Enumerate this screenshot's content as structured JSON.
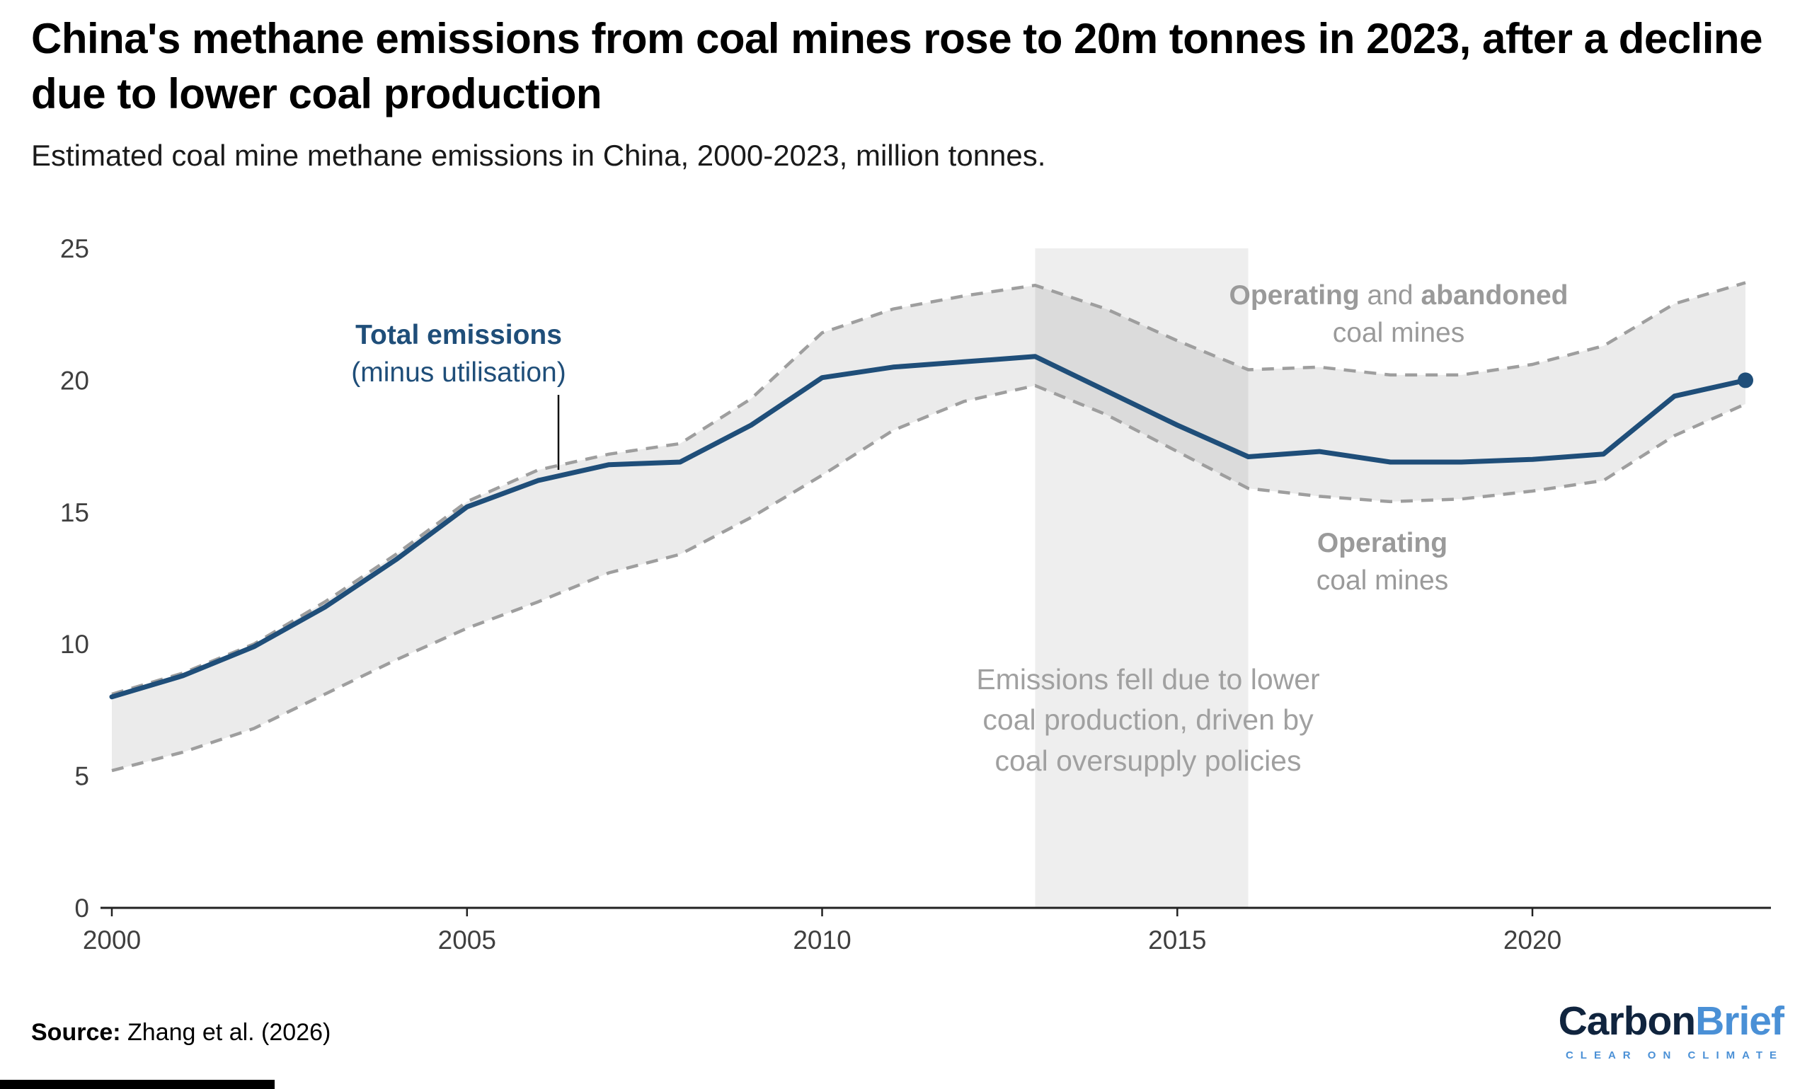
{
  "header": {
    "title": "China's methane emissions from coal mines rose to 20m tonnes in 2023, after a decline due to lower coal production",
    "subtitle": "Estimated coal mine methane emissions in China, 2000-2023, million tonnes."
  },
  "annotations": {
    "total_line1": "Total emissions",
    "total_line2": "(minus utilisation)",
    "upper_word1": "Operating",
    "upper_word2": " and ",
    "upper_word3": "abandoned",
    "upper_line2": "coal mines",
    "lower_word1": "Operating",
    "lower_line2": "coal mines",
    "highlight_line1": "Emissions fell due to lower",
    "highlight_line2": "coal production, driven by",
    "highlight_line3": "coal oversupply policies"
  },
  "footer": {
    "source_label": "Source:",
    "source_text": " Zhang et al. (2026)",
    "logo_part1": "Carbon",
    "logo_part2": "Brief",
    "logo_tagline": "CLEAR ON CLIMATE"
  },
  "colors": {
    "line_blue": "#1f4e79",
    "dashed_gray": "#9e9e9e",
    "band_fill": "rgba(0,0,0,0.08)",
    "highlight_fill": "#eeeeee",
    "axis": "#222222"
  },
  "chart_data": {
    "type": "line",
    "title": "China's methane emissions from coal mines rose to 20m tonnes in 2023, after a decline due to lower coal production",
    "subtitle": "Estimated coal mine methane emissions in China, 2000-2023, million tonnes.",
    "xlabel": "",
    "ylabel": "million tonnes",
    "x": [
      2000,
      2001,
      2002,
      2003,
      2004,
      2005,
      2006,
      2007,
      2008,
      2009,
      2010,
      2011,
      2012,
      2013,
      2014,
      2015,
      2016,
      2017,
      2018,
      2019,
      2020,
      2021,
      2022,
      2023
    ],
    "series": [
      {
        "name": "Total emissions (minus utilisation)",
        "style": "solid",
        "color": "#1f4e79",
        "values": [
          8.0,
          8.8,
          9.9,
          11.4,
          13.2,
          15.2,
          16.2,
          16.8,
          16.9,
          18.3,
          20.1,
          20.5,
          20.7,
          20.9,
          19.6,
          18.3,
          17.1,
          17.3,
          16.9,
          16.9,
          17.0,
          17.2,
          19.4,
          20.0
        ]
      },
      {
        "name": "Operating and abandoned coal mines",
        "style": "dashed",
        "color": "#9e9e9e",
        "values": [
          8.1,
          8.9,
          10.0,
          11.6,
          13.4,
          15.4,
          16.6,
          17.2,
          17.6,
          19.3,
          21.8,
          22.7,
          23.2,
          23.6,
          22.7,
          21.5,
          20.4,
          20.5,
          20.2,
          20.2,
          20.6,
          21.3,
          22.9,
          23.7
        ]
      },
      {
        "name": "Operating coal mines",
        "style": "dashed",
        "color": "#9e9e9e",
        "values": [
          5.2,
          5.9,
          6.8,
          8.1,
          9.4,
          10.6,
          11.6,
          12.7,
          13.4,
          14.8,
          16.4,
          18.1,
          19.2,
          19.8,
          18.7,
          17.3,
          15.9,
          15.6,
          15.4,
          15.5,
          15.8,
          16.2,
          17.9,
          19.1
        ]
      }
    ],
    "band_between_series": [
      1,
      2
    ],
    "highlight_region": {
      "x_start": 2013,
      "x_end": 2016
    },
    "ylim": [
      0,
      25
    ],
    "xlim": [
      2000,
      2023
    ],
    "yticks": [
      0,
      5,
      10,
      15,
      20,
      25
    ],
    "xticks": [
      2000,
      2005,
      2010,
      2015,
      2020
    ],
    "grid": false,
    "legend_position": "annotations",
    "endpoint_marker": {
      "x": 2023,
      "y": 20.0
    }
  }
}
